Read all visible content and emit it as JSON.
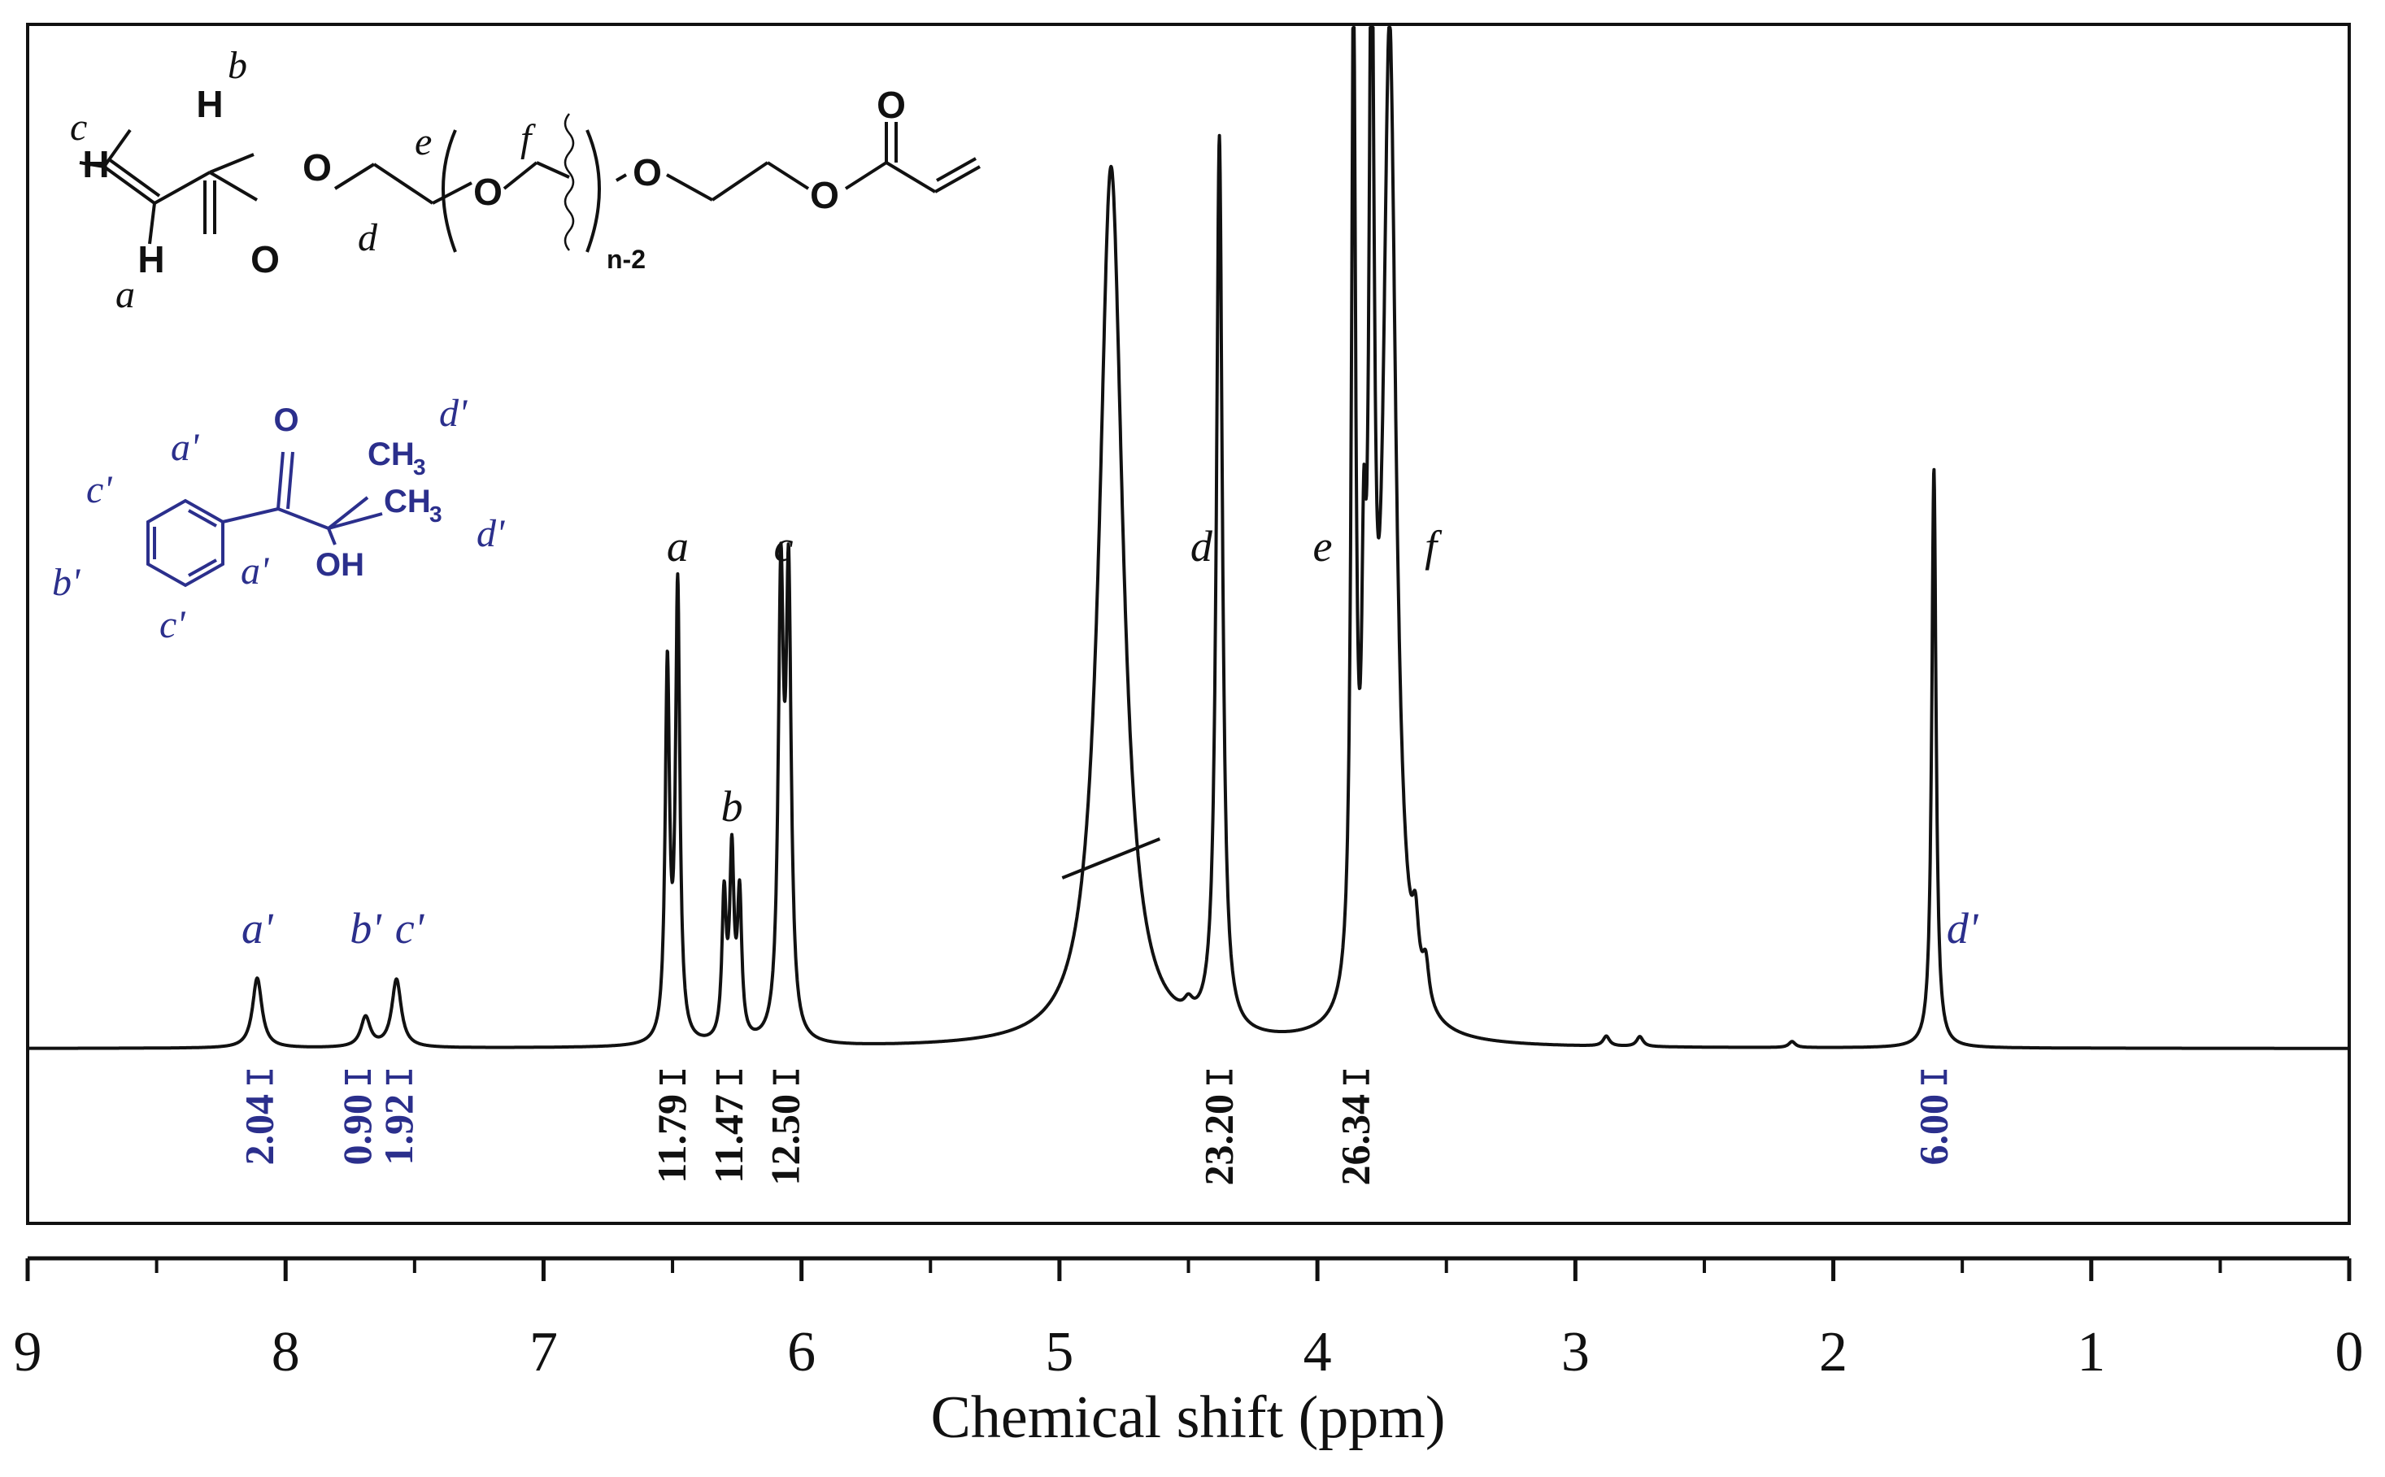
{
  "colors": {
    "black": "#111111",
    "blue": "#2b2f8c"
  },
  "chart_data": {
    "type": "line",
    "xlabel": "Chemical shift (ppm)",
    "xlim": [
      9,
      0
    ],
    "x_reversed": true,
    "x_ticks": [
      "9",
      "8",
      "7",
      "6",
      "5",
      "4",
      "3",
      "2",
      "1",
      "0"
    ],
    "y_axis": "none",
    "series": [
      {
        "peaks": [
          {
            "ppm": 8.11,
            "height": 0.07,
            "width": 0.022
          },
          {
            "ppm": 7.69,
            "height": 0.03,
            "width": 0.022
          },
          {
            "ppm": 7.57,
            "height": 0.068,
            "width": 0.022
          },
          {
            "ppm": 6.52,
            "height": 0.37,
            "width": 0.01
          },
          {
            "ppm": 6.48,
            "height": 0.45,
            "width": 0.01
          },
          {
            "ppm": 6.3,
            "height": 0.14,
            "width": 0.01
          },
          {
            "ppm": 6.27,
            "height": 0.18,
            "width": 0.01
          },
          {
            "ppm": 6.24,
            "height": 0.14,
            "width": 0.01
          },
          {
            "ppm": 6.08,
            "height": 0.44,
            "width": 0.012
          },
          {
            "ppm": 6.05,
            "height": 0.44,
            "width": 0.012
          },
          {
            "ppm": 4.8,
            "height": 0.88,
            "width": 0.055
          },
          {
            "ppm": 4.5,
            "height": 0.012,
            "width": 0.02
          },
          {
            "ppm": 4.38,
            "height": 0.895,
            "width": 0.014
          },
          {
            "ppm": 3.86,
            "height": 0.99,
            "width": 0.01
          },
          {
            "ppm": 3.82,
            "height": 0.3,
            "width": 0.01
          },
          {
            "ppm": 3.79,
            "height": 0.99,
            "width": 0.012
          },
          {
            "ppm": 3.72,
            "height": 0.99,
            "width": 0.03
          },
          {
            "ppm": 3.62,
            "height": 0.06,
            "width": 0.015
          },
          {
            "ppm": 3.58,
            "height": 0.04,
            "width": 0.015
          },
          {
            "ppm": 2.88,
            "height": 0.01,
            "width": 0.015
          },
          {
            "ppm": 2.75,
            "height": 0.01,
            "width": 0.015
          },
          {
            "ppm": 2.16,
            "height": 0.006,
            "width": 0.015
          },
          {
            "ppm": 1.61,
            "height": 0.58,
            "width": 0.01
          }
        ]
      }
    ],
    "peak_labels": [
      {
        "text": "a'",
        "ppm": 8.11,
        "color": "blue"
      },
      {
        "text": "b'",
        "ppm": 7.69,
        "color": "blue"
      },
      {
        "text": "c'",
        "ppm": 7.52,
        "color": "blue"
      },
      {
        "text": "a",
        "ppm": 6.48,
        "color": "black"
      },
      {
        "text": "b",
        "ppm": 6.27,
        "color": "black"
      },
      {
        "text": "c",
        "ppm": 6.07,
        "color": "black"
      },
      {
        "text": "d",
        "ppm": 4.45,
        "color": "black"
      },
      {
        "text": "e",
        "ppm": 3.98,
        "color": "black"
      },
      {
        "text": "f",
        "ppm": 3.56,
        "color": "black"
      },
      {
        "text": "d'",
        "ppm": 1.5,
        "color": "blue"
      }
    ],
    "integrals": [
      {
        "value": "2.04",
        "ppm": 8.1,
        "color": "blue"
      },
      {
        "value": "0.90",
        "ppm": 7.72,
        "color": "blue"
      },
      {
        "value": "1.92",
        "ppm": 7.56,
        "color": "blue"
      },
      {
        "value": "11.79",
        "ppm": 6.5,
        "color": "black"
      },
      {
        "value": "11.47",
        "ppm": 6.28,
        "color": "black"
      },
      {
        "value": "12.50",
        "ppm": 6.06,
        "color": "black"
      },
      {
        "value": "23.20",
        "ppm": 4.38,
        "color": "black"
      },
      {
        "value": "26.34",
        "ppm": 3.85,
        "color": "black"
      },
      {
        "value": "6.00",
        "ppm": 1.61,
        "color": "blue"
      }
    ]
  },
  "structure_peg": {
    "atoms": {
      "h_b": "H",
      "h_c": "H",
      "h_a": "H",
      "o_carbonyl": "O",
      "o_ester": "O",
      "o_ether1": "O",
      "o_ether2": "O",
      "o_ester2": "O",
      "o_carbonyl2": "O"
    },
    "labels": {
      "a": "a",
      "b": "b",
      "c": "c",
      "d": "d",
      "e": "e",
      "f": "f"
    },
    "repeat_subscript": "n-2"
  },
  "structure_photoinitiator": {
    "atoms": {
      "o_ketone": "O",
      "ch3_top": "CH",
      "ch3_bottom": "CH",
      "sub3": "3",
      "oh": "OH"
    },
    "labels": {
      "a1": "a'",
      "a2": "a'",
      "b": "b'",
      "c1": "c'",
      "c2": "c'",
      "d1": "d'",
      "d2": "d'"
    }
  }
}
